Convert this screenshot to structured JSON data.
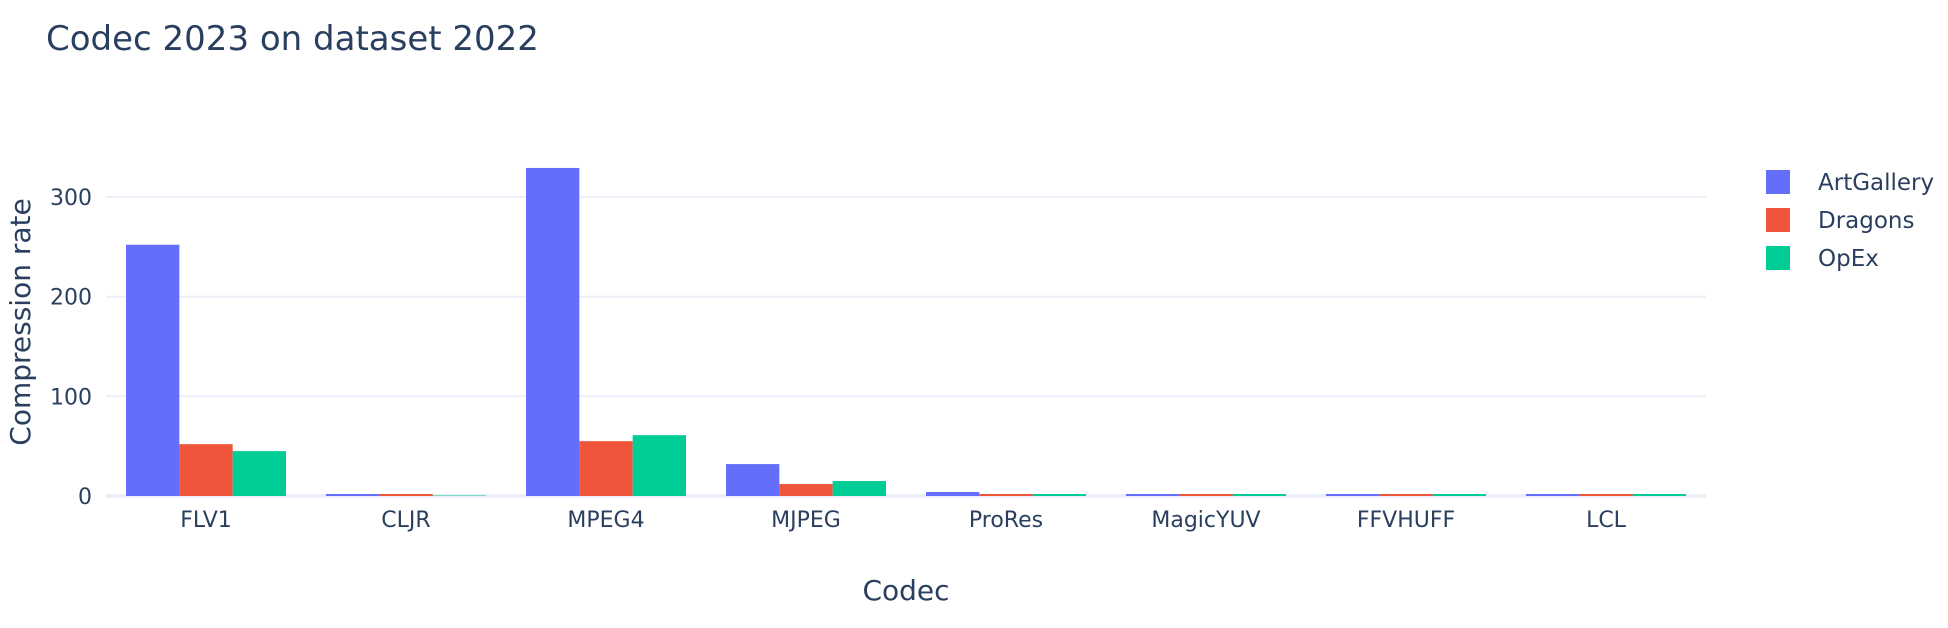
{
  "chart_data": {
    "type": "bar",
    "title": "Codec 2023 on dataset 2022",
    "xlabel": "Codec",
    "ylabel": "Compression rate",
    "categories": [
      "FLV1",
      "CLJR",
      "MPEG4",
      "MJPEG",
      "ProRes",
      "MagicYUV",
      "FFVHUFF",
      "LCL"
    ],
    "series": [
      {
        "name": "ArtGallery",
        "color": "#636efa",
        "values": [
          252,
          2,
          329,
          32,
          4,
          2,
          2,
          2
        ]
      },
      {
        "name": "Dragons",
        "color": "#ef553b",
        "values": [
          52,
          2,
          55,
          12,
          2,
          2,
          2,
          2
        ]
      },
      {
        "name": "OpEx",
        "color": "#00cc96",
        "values": [
          45,
          0.5,
          61,
          15,
          2,
          2,
          2,
          2
        ]
      }
    ],
    "ylim": [
      0,
      345
    ],
    "yticks": [
      0,
      100,
      200,
      300
    ],
    "grid": true,
    "legend_position": "top-right"
  }
}
